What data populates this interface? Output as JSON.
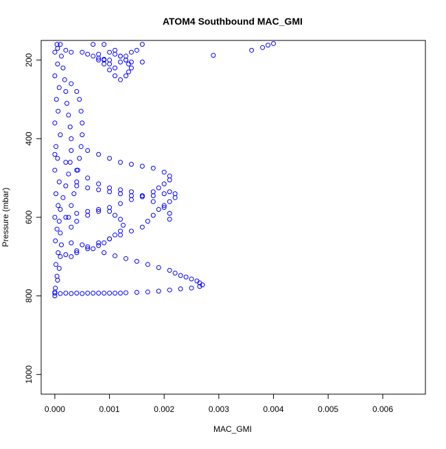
{
  "chart_data": {
    "type": "scatter",
    "title": "ATOM4 Southbound MAC_GMI",
    "xlabel": "MAC_GMI",
    "ylabel": "Pressure (mbar)",
    "xlim": [
      -0.00025,
      0.00678
    ],
    "ylim": [
      1050,
      150
    ],
    "y_reversed": true,
    "grid": false,
    "x_ticks": [
      0.0,
      0.001,
      0.002,
      0.003,
      0.004,
      0.005,
      0.006
    ],
    "x_tick_labels": [
      "0.000",
      "0.001",
      "0.002",
      "0.003",
      "0.004",
      "0.005",
      "0.006"
    ],
    "y_ticks": [
      200,
      400,
      600,
      800,
      1000
    ],
    "y_tick_labels": [
      "200",
      "400",
      "600",
      "800",
      "1000"
    ],
    "marker": "open-circle",
    "series_color": "#0000ff",
    "series": [
      {
        "values": [
          [
            4e-05,
            160
          ],
          [
            0.0,
            180
          ],
          [
            5e-05,
            210
          ],
          [
            0.0,
            240
          ],
          [
            8e-05,
            270
          ],
          [
            3e-05,
            300
          ],
          [
            6e-05,
            330
          ],
          [
            0.0,
            360
          ],
          [
            0.0001,
            390
          ],
          [
            2e-05,
            420
          ],
          [
            5e-05,
            450
          ],
          [
            0.0,
            480
          ],
          [
            8e-05,
            510
          ],
          [
            2e-05,
            540
          ],
          [
            6e-05,
            570
          ],
          [
            0.0,
            600
          ],
          [
            4e-05,
            630
          ],
          [
            1e-05,
            660
          ],
          [
            6e-05,
            690
          ],
          [
            2e-05,
            720
          ],
          [
            4e-05,
            750
          ],
          [
            1e-05,
            780
          ],
          [
            0.0,
            800
          ]
        ]
      },
      {
        "values": [
          [
            0.0001,
            160
          ],
          [
            0.00012,
            190
          ],
          [
            0.00015,
            220
          ],
          [
            0.00018,
            250
          ],
          [
            0.0002,
            280
          ],
          [
            0.00022,
            310
          ],
          [
            0.00025,
            340
          ],
          [
            0.00028,
            370
          ],
          [
            0.0003,
            400
          ],
          [
            0.0003,
            430
          ],
          [
            0.00028,
            460
          ],
          [
            0.00025,
            490
          ],
          [
            0.0002,
            520
          ],
          [
            0.00015,
            550
          ],
          [
            0.0001,
            580
          ],
          [
            8e-05,
            610
          ],
          [
            0.0001,
            640
          ],
          [
            0.00012,
            670
          ],
          [
            0.0001,
            700
          ],
          [
            8e-05,
            730
          ],
          [
            5e-05,
            760
          ],
          [
            0.0,
            790
          ]
        ]
      },
      {
        "values": [
          [
            0.0009,
            160
          ],
          [
            0.0011,
            175
          ],
          [
            0.0012,
            190
          ],
          [
            0.0013,
            200
          ],
          [
            0.0014,
            205
          ],
          [
            0.0016,
            205
          ]
        ]
      },
      {
        "values": [
          [
            0.0029,
            188
          ],
          [
            0.0036,
            175
          ],
          [
            0.0038,
            168
          ],
          [
            0.0039,
            162
          ],
          [
            0.004,
            158
          ]
        ]
      },
      {
        "values": [
          [
            0.0003,
            260
          ],
          [
            0.0004,
            280
          ],
          [
            0.00045,
            300
          ],
          [
            0.00048,
            330
          ],
          [
            0.0005,
            360
          ],
          [
            0.0005,
            390
          ],
          [
            0.00048,
            420
          ],
          [
            0.00045,
            450
          ],
          [
            0.00042,
            480
          ],
          [
            0.0004,
            510
          ],
          [
            0.00035,
            540
          ],
          [
            0.0003,
            570
          ],
          [
            0.00025,
            600
          ]
        ]
      },
      {
        "values": [
          [
            0.0007,
            160
          ],
          [
            0.0008,
            185
          ],
          [
            0.0009,
            200
          ],
          [
            0.001,
            210
          ],
          [
            0.0011,
            220
          ],
          [
            0.0012,
            205
          ],
          [
            0.0013,
            190
          ],
          [
            0.0014,
            180
          ],
          [
            0.0015,
            175
          ],
          [
            0.0016,
            160
          ]
        ]
      },
      {
        "values": [
          [
            5e-05,
            170
          ],
          [
            0.0002,
            175
          ],
          [
            0.0003,
            180
          ],
          [
            0.0005,
            180
          ],
          [
            0.0006,
            185
          ],
          [
            0.0007,
            190
          ],
          [
            0.0008,
            195
          ],
          [
            0.0009,
            198
          ],
          [
            0.001,
            200
          ]
        ]
      },
      {
        "values": [
          [
            0.0008,
            200
          ],
          [
            0.0009,
            210
          ],
          [
            0.001,
            225
          ],
          [
            0.0011,
            240
          ],
          [
            0.0012,
            250
          ],
          [
            0.0013,
            240
          ],
          [
            0.00135,
            230
          ],
          [
            0.0014,
            220
          ],
          [
            0.00135,
            210
          ],
          [
            0.0013,
            200
          ],
          [
            0.0012,
            190
          ],
          [
            0.0011,
            185
          ],
          [
            0.001,
            180
          ]
        ]
      },
      {
        "values": [
          [
            0.0006,
            430
          ],
          [
            0.0008,
            440
          ],
          [
            0.001,
            450
          ],
          [
            0.0012,
            460
          ],
          [
            0.0014,
            465
          ],
          [
            0.0016,
            470
          ],
          [
            0.0018,
            475
          ],
          [
            0.002,
            485
          ],
          [
            0.0021,
            495
          ],
          [
            0.0021,
            505
          ],
          [
            0.002,
            515
          ],
          [
            0.0019,
            525
          ],
          [
            0.0018,
            535
          ],
          [
            0.0016,
            545
          ],
          [
            0.0014,
            555
          ],
          [
            0.0012,
            565
          ],
          [
            0.001,
            575
          ],
          [
            0.0008,
            585
          ],
          [
            0.0006,
            595
          ],
          [
            0.0004,
            610
          ],
          [
            0.0003,
            625
          ]
        ]
      },
      {
        "values": [
          [
            0.0004,
            520
          ],
          [
            0.0006,
            525
          ],
          [
            0.0008,
            530
          ],
          [
            0.001,
            535
          ],
          [
            0.0012,
            540
          ],
          [
            0.0014,
            545
          ],
          [
            0.0016,
            548
          ],
          [
            0.0018,
            545
          ],
          [
            0.002,
            540
          ],
          [
            0.0021,
            535
          ],
          [
            0.0022,
            540
          ],
          [
            0.0022,
            550
          ],
          [
            0.0021,
            560
          ],
          [
            0.002,
            570
          ],
          [
            0.0019,
            580
          ],
          [
            0.0018,
            595
          ],
          [
            0.0017,
            610
          ],
          [
            0.0016,
            625
          ],
          [
            0.0014,
            635
          ],
          [
            0.0012,
            645
          ],
          [
            0.001,
            655
          ],
          [
            0.0008,
            665
          ],
          [
            0.0006,
            675
          ],
          [
            0.0004,
            685
          ],
          [
            0.0002,
            695
          ]
        ]
      },
      {
        "values": [
          [
            0.0002,
            600
          ],
          [
            0.0004,
            590
          ],
          [
            0.0006,
            585
          ],
          [
            0.0008,
            580
          ],
          [
            0.001,
            585
          ],
          [
            0.0011,
            595
          ],
          [
            0.0012,
            605
          ],
          [
            0.00125,
            620
          ],
          [
            0.0012,
            635
          ],
          [
            0.0011,
            645
          ],
          [
            0.001,
            655
          ],
          [
            0.0009,
            665
          ],
          [
            0.0008,
            672
          ],
          [
            0.0006,
            680
          ],
          [
            0.0004,
            690
          ],
          [
            0.0003,
            700
          ]
        ]
      },
      {
        "values": [
          [
            0.0003,
            665
          ],
          [
            0.0005,
            670
          ],
          [
            0.0007,
            680
          ],
          [
            0.0009,
            690
          ],
          [
            0.0011,
            698
          ],
          [
            0.0013,
            705
          ],
          [
            0.0015,
            712
          ],
          [
            0.0017,
            720
          ],
          [
            0.0019,
            728
          ],
          [
            0.0021,
            735
          ],
          [
            0.0022,
            742
          ],
          [
            0.0023,
            748
          ],
          [
            0.0024,
            752
          ],
          [
            0.0025,
            757
          ],
          [
            0.0026,
            762
          ],
          [
            0.00265,
            767
          ],
          [
            0.0027,
            772
          ],
          [
            0.00265,
            776
          ],
          [
            0.0025,
            780
          ],
          [
            0.0023,
            782
          ],
          [
            0.0021,
            785
          ],
          [
            0.0019,
            788
          ],
          [
            0.0017,
            790
          ],
          [
            0.0015,
            791
          ],
          [
            0.0013,
            792
          ],
          [
            0.0011,
            793
          ],
          [
            0.0009,
            793
          ],
          [
            0.0007,
            793
          ],
          [
            0.0005,
            794
          ],
          [
            0.0003,
            794
          ],
          [
            0.0001,
            794
          ]
        ]
      },
      {
        "values": [
          [
            0.0,
            440
          ],
          [
            0.0002,
            460
          ],
          [
            0.0004,
            480
          ],
          [
            0.0006,
            500
          ],
          [
            0.0008,
            515
          ],
          [
            0.001,
            525
          ],
          [
            0.0012,
            530
          ],
          [
            0.0014,
            535
          ],
          [
            0.0016,
            545
          ],
          [
            0.0018,
            560
          ],
          [
            0.002,
            575
          ],
          [
            0.0021,
            590
          ],
          [
            0.0021,
            605
          ]
        ]
      },
      {
        "values": [
          [
            0.0,
            793
          ],
          [
            0.0002,
            793
          ],
          [
            0.0004,
            793
          ],
          [
            0.0006,
            793
          ],
          [
            0.0008,
            793
          ],
          [
            0.001,
            793
          ],
          [
            0.0012,
            793
          ]
        ]
      }
    ]
  }
}
